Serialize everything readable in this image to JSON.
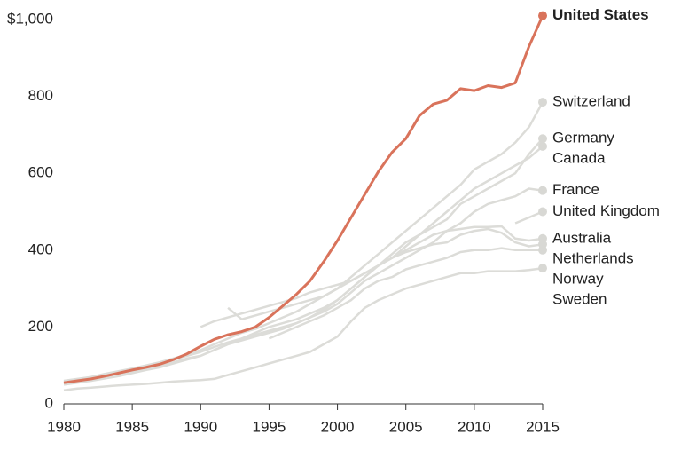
{
  "chart_data": {
    "type": "line",
    "x": [
      1980,
      1981,
      1982,
      1983,
      1984,
      1985,
      1986,
      1987,
      1988,
      1989,
      1990,
      1991,
      1992,
      1993,
      1994,
      1995,
      1996,
      1997,
      1998,
      1999,
      2000,
      2001,
      2002,
      2003,
      2004,
      2005,
      2006,
      2007,
      2008,
      2009,
      2010,
      2011,
      2012,
      2013,
      2014,
      2015
    ],
    "xlim": [
      1980,
      2015
    ],
    "xticks": [
      1980,
      1985,
      1990,
      1995,
      2000,
      2005,
      2010,
      2015
    ],
    "ylim": [
      0,
      1000
    ],
    "yticks": [
      0,
      200,
      400,
      600,
      800,
      {
        "value": 1000,
        "label": "$1,000"
      }
    ],
    "series": [
      {
        "name": "Switzerland",
        "color": "#dcdcd8",
        "values": [
          60,
          65,
          70,
          78,
          85,
          92,
          100,
          108,
          118,
          128,
          140,
          155,
          170,
          185,
          195,
          210,
          225,
          240,
          260,
          280,
          300,
          330,
          360,
          390,
          420,
          450,
          480,
          510,
          540,
          570,
          610,
          630,
          650,
          680,
          720,
          785
        ]
      },
      {
        "name": "Germany",
        "color": "#dcdcd8",
        "values": [
          55,
          60,
          66,
          72,
          78,
          85,
          92,
          100,
          108,
          118,
          125,
          140,
          155,
          170,
          185,
          200,
          210,
          220,
          235,
          250,
          270,
          300,
          330,
          360,
          390,
          420,
          440,
          460,
          480,
          520,
          540,
          560,
          580,
          600,
          650,
          690
        ]
      },
      {
        "name": "Canada",
        "color": "#dcdcd8",
        "values": [
          58,
          64,
          70,
          76,
          82,
          90,
          98,
          106,
          115,
          125,
          135,
          148,
          160,
          170,
          180,
          190,
          200,
          210,
          225,
          245,
          270,
          300,
          330,
          360,
          380,
          410,
          440,
          470,
          500,
          530,
          560,
          580,
          600,
          620,
          640,
          670
        ]
      },
      {
        "name": "France",
        "color": "#dcdcd8",
        "values": [
          50,
          55,
          60,
          66,
          72,
          80,
          88,
          95,
          105,
          115,
          125,
          140,
          155,
          165,
          175,
          185,
          195,
          210,
          225,
          240,
          260,
          290,
          320,
          340,
          360,
          380,
          400,
          420,
          450,
          470,
          500,
          520,
          530,
          540,
          560,
          555
        ]
      },
      {
        "name": "United Kingdom",
        "color": "#dcdcd8",
        "values": [
          null,
          null,
          null,
          null,
          null,
          null,
          null,
          null,
          null,
          null,
          null,
          null,
          null,
          null,
          null,
          null,
          null,
          null,
          null,
          null,
          null,
          null,
          null,
          null,
          null,
          null,
          null,
          null,
          null,
          null,
          null,
          null,
          null,
          470,
          485,
          500
        ]
      },
      {
        "name": "Australia",
        "color": "#dcdcd8",
        "values": [
          null,
          null,
          null,
          null,
          null,
          null,
          null,
          null,
          null,
          null,
          200,
          215,
          225,
          235,
          245,
          255,
          265,
          275,
          290,
          300,
          310,
          320,
          340,
          360,
          380,
          400,
          420,
          440,
          450,
          455,
          460,
          460,
          462,
          430,
          425,
          430
        ]
      },
      {
        "name": "Netherlands",
        "color": "#dcdcd8",
        "values": [
          null,
          null,
          null,
          null,
          null,
          null,
          null,
          null,
          null,
          null,
          null,
          null,
          250,
          220,
          230,
          240,
          250,
          260,
          270,
          280,
          300,
          320,
          340,
          360,
          380,
          395,
          405,
          415,
          420,
          440,
          450,
          455,
          445,
          420,
          410,
          415
        ]
      },
      {
        "name": "Norway",
        "color": "#dcdcd8",
        "values": [
          null,
          null,
          null,
          null,
          null,
          null,
          null,
          null,
          null,
          null,
          null,
          null,
          null,
          null,
          null,
          170,
          185,
          200,
          215,
          230,
          250,
          270,
          300,
          320,
          330,
          350,
          360,
          370,
          380,
          395,
          400,
          400,
          405,
          400,
          400,
          400
        ]
      },
      {
        "name": "Sweden",
        "color": "#dcdcd8",
        "values": [
          35,
          40,
          42,
          45,
          48,
          50,
          52,
          55,
          58,
          60,
          62,
          65,
          75,
          85,
          95,
          105,
          115,
          125,
          135,
          155,
          175,
          215,
          250,
          270,
          285,
          300,
          310,
          320,
          330,
          340,
          340,
          345,
          345,
          345,
          348,
          353
        ]
      },
      {
        "name": "United States",
        "color": "#d9735b",
        "highlight": true,
        "values": [
          55,
          60,
          65,
          72,
          80,
          88,
          95,
          103,
          115,
          130,
          150,
          168,
          180,
          188,
          200,
          225,
          255,
          285,
          320,
          370,
          425,
          485,
          545,
          605,
          655,
          690,
          750,
          780,
          790,
          820,
          815,
          828,
          823,
          835,
          930,
          1010
        ]
      }
    ]
  }
}
